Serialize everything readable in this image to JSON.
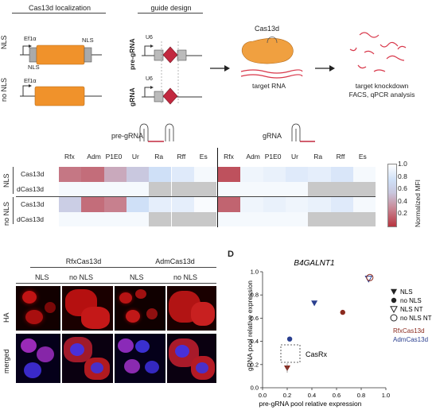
{
  "panelA": {
    "localization_title": "Cas13d localization",
    "guide_title": "guide design",
    "ef1a_label": "Ef1α",
    "nls_label": "NLS",
    "row_nls": "NLS",
    "row_no_nls": "no NLS",
    "u6_label": "U6",
    "pre_grna_label": "pre-gRNA",
    "grna_label": "gRNA",
    "cas13d_label": "Cas13d",
    "target_rna_label": "target RNA",
    "knockdown_line1": "target knockdown",
    "knockdown_line2": "FACS, qPCR analysis"
  },
  "heatmap": {
    "pre_grna_header": "pre-gRNA",
    "grna_header": "gRNA",
    "columns_pre": [
      "Rfx",
      "Adm",
      "P1E0",
      "Ur",
      "Ra",
      "Rff",
      "Es"
    ],
    "columns_g": [
      "Rfx",
      "Adm",
      "P1E0",
      "Ur",
      "Ra",
      "Rff",
      "Es"
    ],
    "group_nls": "NLS",
    "group_no_nls": "no NLS",
    "rows": [
      "Cas13d",
      "dCas13d",
      "Cas13d",
      "dCas13d"
    ],
    "pre_values": [
      [
        0.35,
        0.3,
        0.55,
        0.65,
        0.85,
        0.9,
        0.97
      ],
      [
        0.97,
        0.97,
        0.97,
        0.97,
        null,
        null,
        null
      ],
      [
        0.7,
        0.3,
        0.4,
        0.85,
        0.92,
        0.92,
        0.98
      ],
      [
        0.97,
        0.97,
        0.97,
        0.97,
        null,
        null,
        null
      ]
    ],
    "g_values": [
      [
        0.15,
        0.95,
        0.93,
        0.9,
        0.92,
        0.88,
        0.97
      ],
      [
        0.97,
        0.97,
        0.97,
        0.97,
        null,
        null,
        null
      ],
      [
        0.25,
        0.95,
        0.93,
        0.95,
        0.93,
        0.9,
        0.97
      ],
      [
        0.97,
        0.97,
        0.97,
        0.97,
        null,
        null,
        null
      ]
    ],
    "colorbar_ticks": [
      "1.0",
      "0.8",
      "0.6",
      "0.4",
      "0.2"
    ],
    "colorbar_label": "Normalized MFI",
    "color_low": "#b8343f",
    "color_high": "#ffffff",
    "color_mid_high": "#cfe0f7",
    "color_na": "#c8c8c8"
  },
  "panelC": {
    "rfx_title": "RfxCas13d",
    "adm_title": "AdmCas13d",
    "col_nls": "NLS",
    "col_no_nls": "no NLS",
    "row_ha": "HA",
    "row_merged": "merged"
  },
  "panelD": {
    "letter": "D",
    "chart_data": {
      "type": "scatter",
      "title": "B4GALNT1",
      "xlabel": "pre-gRNA pool relative expression",
      "ylabel": "gRNA pool relative expression",
      "xlim": [
        0,
        1.0
      ],
      "ylim": [
        0,
        1.0
      ],
      "x_ticks": [
        "0.0",
        "0.2",
        "0.4",
        "0.6",
        "0.8",
        "1.0"
      ],
      "y_ticks": [
        "0.0",
        "0.2",
        "0.4",
        "0.6",
        "0.8",
        "1.0"
      ],
      "points": [
        {
          "x": 0.2,
          "y": 0.17,
          "marker": "triangle-filled",
          "group": "RfxCas13d",
          "color": "#8b2a1e"
        },
        {
          "x": 0.42,
          "y": 0.73,
          "marker": "triangle-filled",
          "group": "AdmCas13d",
          "color": "#2a3f8f"
        },
        {
          "x": 0.22,
          "y": 0.42,
          "marker": "circle-filled",
          "group": "AdmCas13d",
          "color": "#2a3f8f"
        },
        {
          "x": 0.65,
          "y": 0.65,
          "marker": "circle-filled",
          "group": "RfxCas13d",
          "color": "#8b2a1e"
        },
        {
          "x": 0.86,
          "y": 0.94,
          "marker": "triangle-open",
          "group": "AdmCas13d",
          "color": "#2a3f8f"
        },
        {
          "x": 0.87,
          "y": 0.95,
          "marker": "circle-open",
          "group": "RfxCas13d",
          "color": "#8b2a1e"
        }
      ],
      "legend": [
        "NLS",
        "no NLS",
        "NLS NT",
        "no NLS NT"
      ],
      "group_labels": [
        "RfxCas13d",
        "AdmCas13d"
      ],
      "group_colors": [
        "#8b2a1e",
        "#2a3f8f"
      ],
      "annotation": "CasRx"
    }
  }
}
